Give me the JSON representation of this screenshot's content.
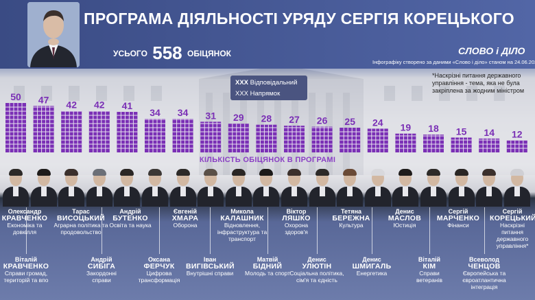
{
  "header": {
    "title": "ПРОГРАМА ДІЯЛЬНОСТІ УРЯДУ СЕРГІЯ КОРЕЦЬКОГО",
    "total_prefix": "УСЬОГО",
    "total_value": "558",
    "total_suffix": "ОБІЦЯНОК",
    "logo": "СЛОВО і ДІЛО",
    "source": "Інфографіку створено за даними «Слово і діло» станом на 24.06.2026"
  },
  "legend": {
    "responsible_code": "ХХХ",
    "responsible_label": "Відповідальний",
    "direction_label": "ХХХ Напрямок"
  },
  "footnote": "*Наскрізні питання державного управління - тема, яка не була закріплена за жодним міністром",
  "colors": {
    "bar": "#7a2fb5",
    "value": "#7a2fb5",
    "axis_label": "#8a3fc4",
    "header": "#3a4b84"
  },
  "chart_data": {
    "type": "bar",
    "title": "",
    "xlabel": "КІЛЬКІСТЬ ОБІЦЯНОК В ПРОГРАМІ",
    "ylabel": "",
    "categories": [
      "Кравченко (Економіка та довкілля)",
      "Кравченко (Справи громад, територій та впо)",
      "Висоцький",
      "Сибіга",
      "Бутенко",
      "Ферчук",
      "Хмара",
      "Вигівський",
      "Калашник",
      "Бідний",
      "Ляшко",
      "Улютін",
      "Бережна",
      "Шмигаль",
      "Маслов",
      "Кім",
      "Марченко",
      "Ченцов",
      "Корецький"
    ],
    "values": [
      50,
      47,
      42,
      42,
      41,
      34,
      34,
      31,
      29,
      28,
      27,
      26,
      25,
      24,
      19,
      18,
      15,
      14,
      12
    ],
    "value_labels": [
      "50",
      "47",
      "42",
      "42",
      "41",
      "34",
      "34",
      "31",
      "29",
      "28",
      "27",
      "26",
      "25",
      "24",
      "19",
      "18",
      "15",
      "14",
      "12"
    ],
    "ylim": [
      0,
      50
    ]
  },
  "ministers_top": [
    {
      "first": "Олександр",
      "last": "КРАВЧЕНКО",
      "role": "Економіка та довкілля"
    },
    {
      "first": "Тарас",
      "last": "ВИСОЦЬКИЙ",
      "role": "Аграрна політика та продовольство"
    },
    {
      "first": "Андрій",
      "last": "БУТЕНКО",
      "role": "Освіта та наука"
    },
    {
      "first": "Євгеній",
      "last": "ХМАРА",
      "role": "Оборона"
    },
    {
      "first": "Микола",
      "last": "КАЛАШНИК",
      "role": "Відновлення, інфраструктура та транспорт"
    },
    {
      "first": "Віктор",
      "last": "ЛЯШКО",
      "role": "Охорона здоров'я"
    },
    {
      "first": "Тетяна",
      "last": "БЕРЕЖНА",
      "role": "Культура"
    },
    {
      "first": "Денис",
      "last": "МАСЛОВ",
      "role": "Юстиція"
    },
    {
      "first": "Сергій",
      "last": "МАРЧЕНКО",
      "role": "Фінанси"
    },
    {
      "first": "Сергій",
      "last": "КОРЕЦЬКИЙ",
      "role": "Наскрізні питання державного управління*"
    }
  ],
  "ministers_bottom": [
    {
      "first": "Віталій",
      "last": "КРАВЧЕНКО",
      "role": "Справи громад, територій та впо"
    },
    {
      "first": "Андрій",
      "last": "СИБІГА",
      "role": "Закордонні справи"
    },
    {
      "first": "Оксана",
      "last": "ФЕРЧУК",
      "role": "Цифрова трансформація"
    },
    {
      "first": "Іван",
      "last": "ВИГІВСЬКИЙ",
      "role": "Внутрішні справи"
    },
    {
      "first": "Матвій",
      "last": "БІДНИЙ",
      "role": "Молодь та спорт"
    },
    {
      "first": "Денис",
      "last": "УЛЮТІН",
      "role": "Соціальна політика, сім'я та єдність"
    },
    {
      "first": "Денис",
      "last": "ШМИГАЛЬ",
      "role": "Енергетика"
    },
    {
      "first": "Віталій",
      "last": "КІМ",
      "role": "Справи ветеранів"
    },
    {
      "first": "Всеволод",
      "last": "ЧЕНЦОВ",
      "role": "Європейська та євроатлантична інтеграція"
    }
  ]
}
